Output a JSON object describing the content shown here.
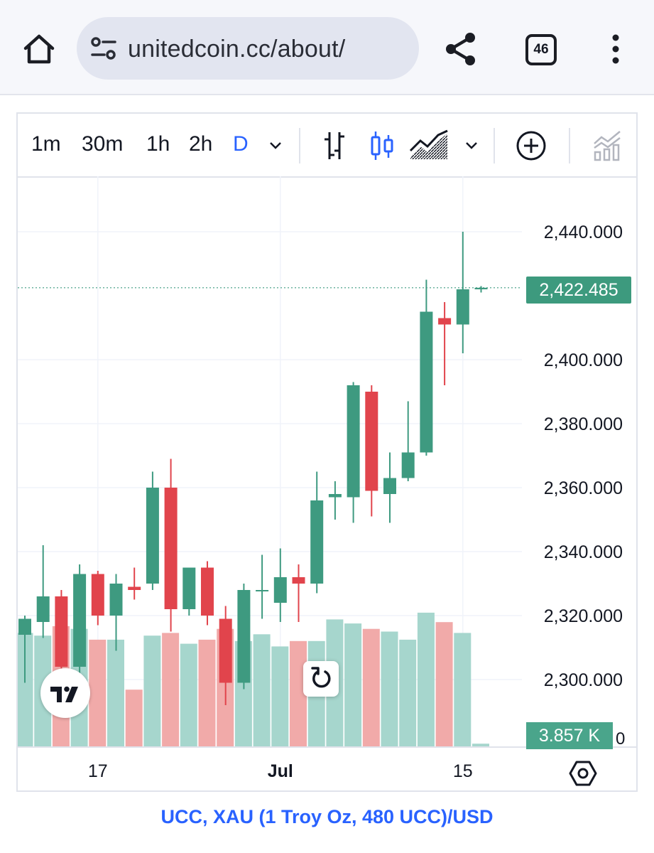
{
  "browser": {
    "url": "unitedcoin.cc/about/",
    "tab_count": "46"
  },
  "toolbar": {
    "timeframes": [
      "1m",
      "30m",
      "1h",
      "2h",
      "D"
    ],
    "active_timeframe": "D",
    "icons": [
      "bar-chart-icon",
      "candles-icon",
      "area-chart-icon",
      "chevron-down-icon",
      "add-indicator-icon",
      "compare-icon"
    ]
  },
  "chart": {
    "current_price_label": "2,422.485",
    "volume_label": "3.857 K",
    "volume_axis_zero": "0",
    "caption": "UCC, XAU (1 Troy Oz, 480 UCC)/USD",
    "colors": {
      "up": "#3e9a80",
      "down": "#e1444c",
      "vol_up": "#a6d6cd",
      "vol_down": "#f1aaa9",
      "accent": "#2962ff"
    }
  },
  "chart_data": {
    "type": "candlestick",
    "title": "",
    "ylim": [
      2282,
      2450
    ],
    "y_ticks": [
      "2,300.000",
      "2,320.000",
      "2,340.000",
      "2,360.000",
      "2,380.000",
      "2,400.000",
      "2,440.000"
    ],
    "y_tick_values": [
      2300,
      2320,
      2340,
      2360,
      2380,
      2400,
      2440
    ],
    "x_tick_labels": [
      {
        "label": "17",
        "index": 4
      },
      {
        "label": "Jul",
        "index": 14
      },
      {
        "label": "15",
        "index": 24
      }
    ],
    "last_price": 2422.485,
    "candles": [
      {
        "o": 2314,
        "h": 2320,
        "l": 2299,
        "c": 2319
      },
      {
        "o": 2318,
        "h": 2342,
        "l": 2313,
        "c": 2326
      },
      {
        "o": 2326,
        "h": 2328,
        "l": 2296,
        "c": 2304
      },
      {
        "o": 2304,
        "h": 2336,
        "l": 2302,
        "c": 2333
      },
      {
        "o": 2333,
        "h": 2334,
        "l": 2317,
        "c": 2320
      },
      {
        "o": 2320,
        "h": 2333,
        "l": 2309,
        "c": 2330
      },
      {
        "o": 2329,
        "h": 2335,
        "l": 2325,
        "c": 2328
      },
      {
        "o": 2330,
        "h": 2365,
        "l": 2328,
        "c": 2360
      },
      {
        "o": 2360,
        "h": 2369,
        "l": 2315,
        "c": 2322
      },
      {
        "o": 2322,
        "h": 2335,
        "l": 2320,
        "c": 2335
      },
      {
        "o": 2335,
        "h": 2337,
        "l": 2317,
        "c": 2320
      },
      {
        "o": 2319,
        "h": 2323,
        "l": 2292,
        "c": 2299
      },
      {
        "o": 2299,
        "h": 2330,
        "l": 2297,
        "c": 2328
      },
      {
        "o": 2328,
        "h": 2339,
        "l": 2319,
        "c": 2328
      },
      {
        "o": 2324,
        "h": 2341,
        "l": 2318,
        "c": 2332
      },
      {
        "o": 2332,
        "h": 2336,
        "l": 2318,
        "c": 2330
      },
      {
        "o": 2330,
        "h": 2365,
        "l": 2327,
        "c": 2356
      },
      {
        "o": 2357,
        "h": 2362,
        "l": 2350,
        "c": 2358
      },
      {
        "o": 2357,
        "h": 2393,
        "l": 2349,
        "c": 2392
      },
      {
        "o": 2390,
        "h": 2392,
        "l": 2351,
        "c": 2359
      },
      {
        "o": 2358,
        "h": 2371,
        "l": 2349,
        "c": 2363
      },
      {
        "o": 2363,
        "h": 2387,
        "l": 2362,
        "c": 2371
      },
      {
        "o": 2371,
        "h": 2425,
        "l": 2370,
        "c": 2415
      },
      {
        "o": 2413,
        "h": 2418,
        "l": 2392,
        "c": 2411
      },
      {
        "o": 2411,
        "h": 2440,
        "l": 2402,
        "c": 2422
      },
      {
        "o": 2422,
        "h": 2423,
        "l": 2421,
        "c": 2422.485
      }
    ],
    "volume_relative": [
      0.84,
      0.82,
      0.89,
      0.87,
      0.79,
      0.79,
      0.42,
      0.82,
      0.84,
      0.76,
      0.79,
      0.87,
      0.78,
      0.83,
      0.74,
      0.78,
      0.78,
      0.94,
      0.91,
      0.87,
      0.85,
      0.79,
      0.99,
      0.92,
      0.84,
      0.02
    ]
  }
}
